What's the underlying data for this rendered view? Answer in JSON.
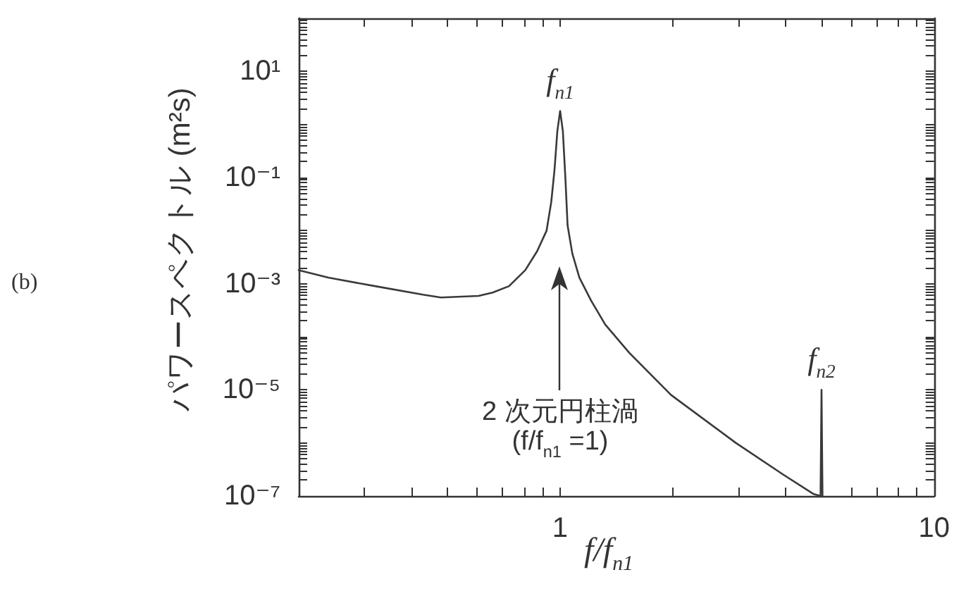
{
  "chart_data": {
    "type": "line",
    "xlabel": "f/f$_{n1}$",
    "ylabel": "パワースペクトル (m²s)",
    "color": "#3a3a3a",
    "line_style": "solid",
    "log": "xy",
    "x": [
      0.2,
      0.24,
      0.32,
      0.43,
      0.48,
      0.605,
      0.66,
      0.73,
      0.807,
      0.868,
      0.92,
      0.947,
      0.966,
      0.983,
      1.0,
      1.017,
      1.033,
      1.047,
      1.078,
      1.126,
      1.21,
      1.32,
      1.53,
      1.98,
      2.95,
      3.96,
      4.75,
      4.97,
      5.0,
      5.03
    ],
    "values": [
      0.0018,
      0.0013,
      0.0009,
      0.00062,
      0.00055,
      0.00059,
      0.00068,
      0.0009,
      0.0018,
      0.0041,
      0.01,
      0.035,
      0.14,
      0.75,
      1.8,
      0.75,
      0.096,
      0.0125,
      0.0037,
      0.0013,
      0.00048,
      0.00017,
      5e-05,
      8e-06,
      1e-06,
      2.5e-07,
      1.1e-07,
      1e-07,
      1e-05,
      1e-07
    ],
    "xlim": [
      0.2,
      10
    ],
    "ylim": [
      1e-07,
      100
    ],
    "xticks": [
      {
        "value": 0.3,
        "label": null
      },
      {
        "value": 0.4,
        "label": null
      },
      {
        "value": 0.5,
        "label": null
      },
      {
        "value": 0.6,
        "label": null
      },
      {
        "value": 0.7,
        "label": null
      },
      {
        "value": 0.8,
        "label": null
      },
      {
        "value": 0.9,
        "label": null
      },
      1,
      {
        "value": 2,
        "label": null
      },
      {
        "value": 3,
        "label": null
      },
      {
        "value": 4,
        "label": null
      },
      {
        "value": 5,
        "label": null
      },
      {
        "value": 6,
        "label": null
      },
      {
        "value": 7,
        "label": null
      },
      {
        "value": 8,
        "label": null
      },
      {
        "value": 9,
        "label": null
      },
      10
    ],
    "yticks": [
      {
        "value": 1e-07,
        "label": "10⁻⁷"
      },
      {
        "value": 2e-07,
        "label": null
      },
      {
        "value": 3e-07,
        "label": null
      },
      {
        "value": 4e-07,
        "label": null
      },
      {
        "value": 5e-07,
        "label": null
      },
      {
        "value": 6e-07,
        "label": null
      },
      {
        "value": 7e-07,
        "label": null
      },
      {
        "value": 8e-07,
        "label": null
      },
      {
        "value": 9e-07,
        "label": null
      },
      {
        "value": 1e-06,
        "label": null
      },
      {
        "value": 2e-06,
        "label": null
      },
      {
        "value": 3e-06,
        "label": null
      },
      {
        "value": 4e-06,
        "label": null
      },
      {
        "value": 5e-06,
        "label": null
      },
      {
        "value": 6e-06,
        "label": null
      },
      {
        "value": 7e-06,
        "label": null
      },
      {
        "value": 8e-06,
        "label": null
      },
      {
        "value": 9e-06,
        "label": null
      },
      {
        "value": 1e-05,
        "label": "10⁻⁵"
      },
      {
        "value": 2e-05,
        "label": null
      },
      {
        "value": 3e-05,
        "label": null
      },
      {
        "value": 4e-05,
        "label": null
      },
      {
        "value": 5e-05,
        "label": null
      },
      {
        "value": 6e-05,
        "label": null
      },
      {
        "value": 7e-05,
        "label": null
      },
      {
        "value": 8e-05,
        "label": null
      },
      {
        "value": 9e-05,
        "label": null
      },
      {
        "value": 0.0001,
        "label": null
      },
      {
        "value": 0.0002,
        "label": null
      },
      {
        "value": 0.0003,
        "label": null
      },
      {
        "value": 0.0004,
        "label": null
      },
      {
        "value": 0.0005,
        "label": null
      },
      {
        "value": 0.0006,
        "label": null
      },
      {
        "value": 0.0007,
        "label": null
      },
      {
        "value": 0.0008,
        "label": null
      },
      {
        "value": 0.0009,
        "label": null
      },
      {
        "value": 0.001,
        "label": "10⁻³"
      },
      {
        "value": 0.002,
        "label": null
      },
      {
        "value": 0.003,
        "label": null
      },
      {
        "value": 0.004,
        "label": null
      },
      {
        "value": 0.005,
        "label": null
      },
      {
        "value": 0.006,
        "label": null
      },
      {
        "value": 0.007,
        "label": null
      },
      {
        "value": 0.008,
        "label": null
      },
      {
        "value": 0.009,
        "label": null
      },
      {
        "value": 0.01,
        "label": null
      },
      {
        "value": 0.02,
        "label": null
      },
      {
        "value": 0.03,
        "label": null
      },
      {
        "value": 0.04,
        "label": null
      },
      {
        "value": 0.05,
        "label": null
      },
      {
        "value": 0.06,
        "label": null
      },
      {
        "value": 0.07,
        "label": null
      },
      {
        "value": 0.08,
        "label": null
      },
      {
        "value": 0.09,
        "label": null
      },
      {
        "value": 0.1,
        "label": "10⁻¹"
      },
      {
        "value": 0.2,
        "label": null
      },
      {
        "value": 0.3,
        "label": null
      },
      {
        "value": 0.4,
        "label": null
      },
      {
        "value": 0.5,
        "label": null
      },
      {
        "value": 0.6,
        "label": null
      },
      {
        "value": 0.7,
        "label": null
      },
      {
        "value": 0.8,
        "label": null
      },
      {
        "value": 0.9,
        "label": null
      },
      {
        "value": 1,
        "label": null
      },
      {
        "value": 2,
        "label": null
      },
      {
        "value": 3,
        "label": null
      },
      {
        "value": 4,
        "label": null
      },
      {
        "value": 5,
        "label": null
      },
      {
        "value": 6,
        "label": null
      },
      {
        "value": 7,
        "label": null
      },
      {
        "value": 8,
        "label": null
      },
      {
        "value": 9,
        "label": null
      },
      {
        "value": 10,
        "label": "10¹"
      },
      {
        "value": 20,
        "label": null
      },
      {
        "value": 30,
        "label": null
      },
      {
        "value": 40,
        "label": null
      },
      {
        "value": 50,
        "label": null
      },
      {
        "value": 60,
        "label": null
      },
      {
        "value": 70,
        "label": null
      },
      {
        "value": 80,
        "label": null
      },
      {
        "value": 90,
        "label": null
      },
      {
        "value": 100,
        "label": null
      }
    ],
    "annotations": [
      "(b)",
      "f$_{n1}$",
      "f$_{n2}$",
      "2 次元円柱渦\n(f/f$_{n1}$ =1)"
    ]
  }
}
